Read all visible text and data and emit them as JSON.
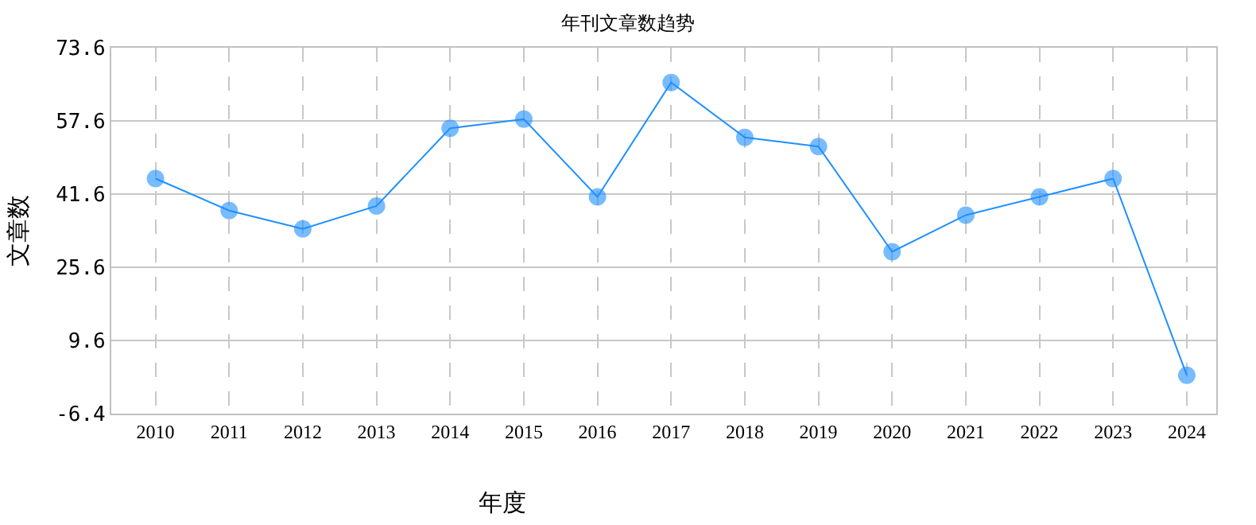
{
  "chart_data": {
    "type": "line",
    "title": "年刊文章数趋势",
    "xlabel": "年度",
    "ylabel": "文章数",
    "categories": [
      "2010",
      "2011",
      "2012",
      "2013",
      "2014",
      "2015",
      "2016",
      "2017",
      "2018",
      "2019",
      "2020",
      "2021",
      "2022",
      "2023",
      "2024"
    ],
    "series": [
      {
        "color": "#1e90ff",
        "values": [
          45,
          38,
          34,
          39,
          56,
          58,
          41,
          66,
          54,
          52,
          29,
          37,
          41,
          45,
          2
        ]
      }
    ],
    "ylim": [
      -6.4,
      73.6
    ],
    "yticks": [
      -6.4,
      9.6,
      25.6,
      41.6,
      57.6,
      73.6
    ],
    "grid": true,
    "marker": "circle",
    "line_style": "solid",
    "legend": false
  }
}
